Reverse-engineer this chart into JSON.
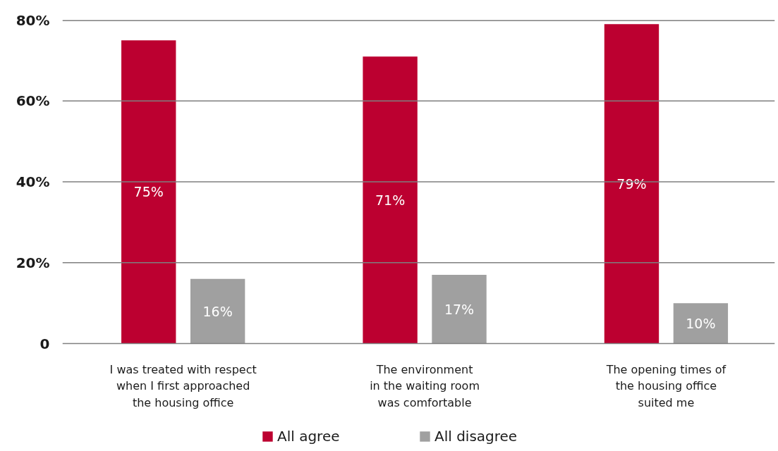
{
  "chart_data": {
    "type": "bar",
    "categories": [
      "I was treated with respect\nwhen I first approached\nthe housing office",
      "The environment\nin the waiting room\nwas comfortable",
      "The opening times of\nthe housing office\nsuited me"
    ],
    "series": [
      {
        "name": "All agree",
        "color": "#bc0030",
        "values": [
          75,
          71,
          79
        ],
        "value_labels": [
          "75%",
          "71%",
          "79%"
        ]
      },
      {
        "name": "All disagree",
        "color": "#a0a0a0",
        "values": [
          16,
          17,
          10
        ],
        "value_labels": [
          "16%",
          "17%",
          "10%"
        ]
      }
    ],
    "ylim": [
      0,
      80
    ],
    "yticks": [
      0,
      {
        "value": 20,
        "label": "20%"
      },
      {
        "value": 40,
        "label": "40%"
      },
      {
        "value": 60,
        "label": "60%"
      },
      {
        "value": 80,
        "label": "80%"
      }
    ],
    "grid": "y",
    "legend": "bottom"
  }
}
